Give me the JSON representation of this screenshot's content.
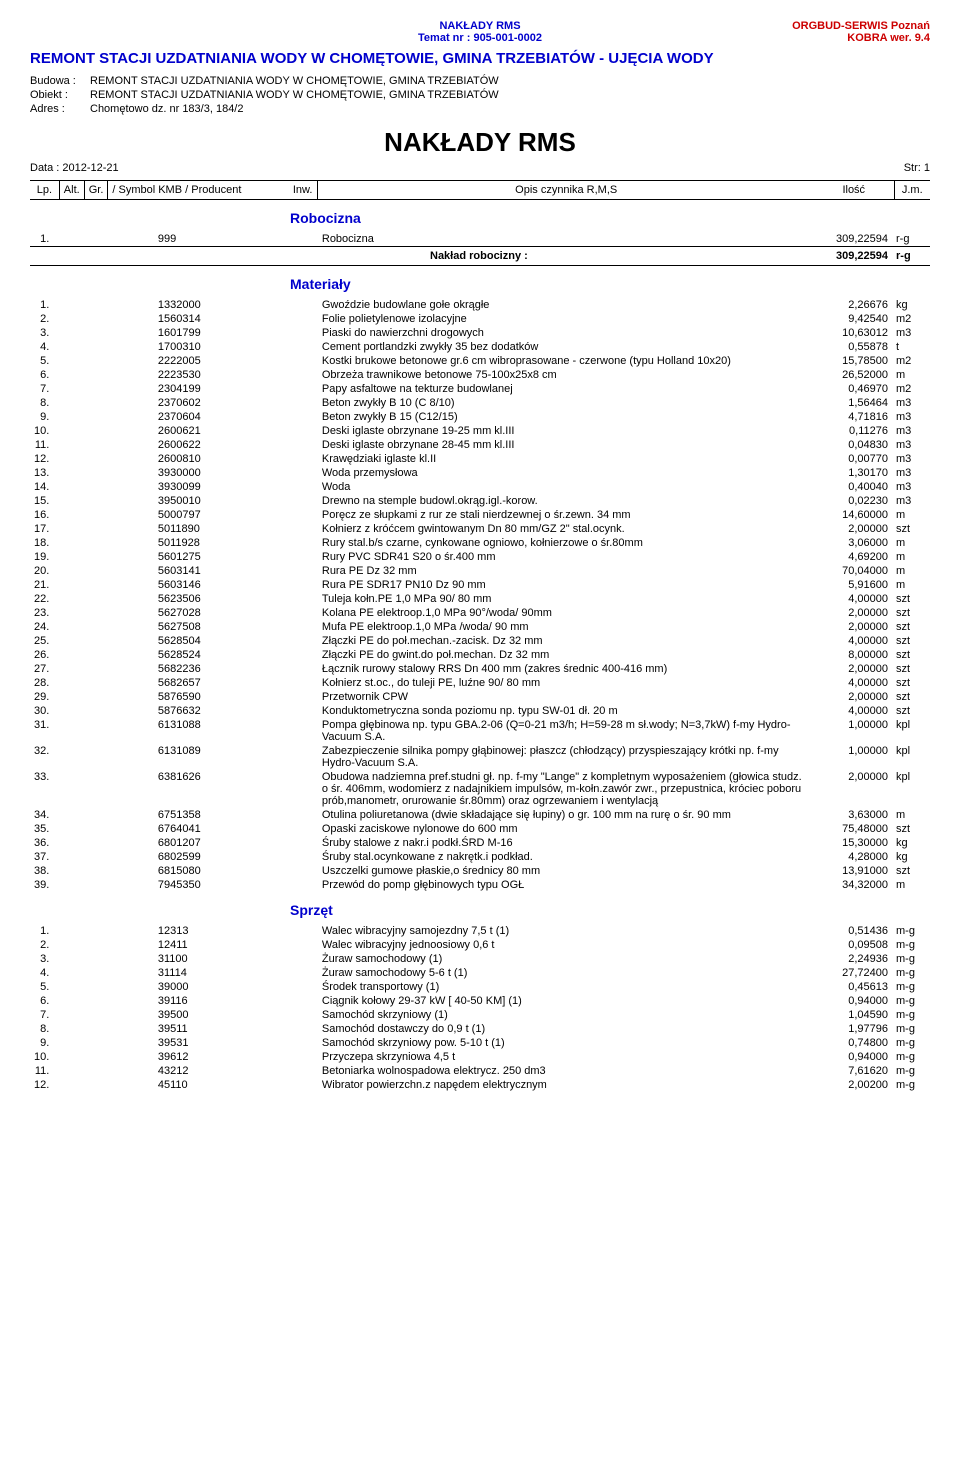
{
  "header": {
    "center_line1": "NAKŁADY RMS",
    "center_line2": "Temat nr : 905-001-0002",
    "right_line1": "ORGBUD-SERWIS Poznań",
    "right_line2": "KOBRA wer. 9.4",
    "title": "REMONT STACJI UZDATNIANIA WODY W CHOMĘTOWIE, GMINA TRZEBIATÓW - UJĘCIA WODY",
    "budowa_label": "Budowa :",
    "budowa_value": "REMONT STACJI UZDATNIANIA WODY W CHOMĘTOWIE, GMINA TRZEBIATÓW",
    "obiekt_label": "Obiekt :",
    "obiekt_value": "REMONT STACJI UZDATNIANIA WODY W CHOMĘTOWIE, GMINA TRZEBIATÓW",
    "adres_label": "Adres :",
    "adres_value": "Chomętowo dz. nr 183/3, 184/2",
    "big_title": "NAKŁADY  RMS",
    "data_label": "Data : 2012-12-21",
    "str_label": "Str: 1"
  },
  "columns": {
    "lp": "Lp.",
    "alt": "Alt.",
    "gr": "Gr.",
    "symbol": "/ Symbol KMB / Producent",
    "inw": "Inw.",
    "opis": "Opis czynnika R,M,S",
    "ilosc": "Ilość",
    "jm": "J.m."
  },
  "sections": {
    "robocizna": {
      "title": "Robocizna",
      "rows": [
        {
          "lp": "1.",
          "sym": "999",
          "opis": "Robocizna",
          "ilosc": "309,22594",
          "jm": "r-g"
        }
      ],
      "summary_label": "Nakład robocizny :",
      "summary_value": "309,22594",
      "summary_jm": "r-g"
    },
    "materialy": {
      "title": "Materiały",
      "rows": [
        {
          "lp": "1.",
          "sym": "1332000",
          "opis": "Gwoździe budowlane gołe okrągłe",
          "ilosc": "2,26676",
          "jm": "kg"
        },
        {
          "lp": "2.",
          "sym": "1560314",
          "opis": "Folie polietylenowe izolacyjne",
          "ilosc": "9,42540",
          "jm": "m2"
        },
        {
          "lp": "3.",
          "sym": "1601799",
          "opis": "Piaski do nawierzchni drogowych",
          "ilosc": "10,63012",
          "jm": "m3"
        },
        {
          "lp": "4.",
          "sym": "1700310",
          "opis": "Cement portlandzki zwykły 35 bez dodatków",
          "ilosc": "0,55878",
          "jm": "t"
        },
        {
          "lp": "5.",
          "sym": "2222005",
          "opis": "Kostki brukowe betonowe gr.6 cm wibroprasowane - czerwone (typu Holland 10x20)",
          "ilosc": "15,78500",
          "jm": "m2"
        },
        {
          "lp": "6.",
          "sym": "2223530",
          "opis": "Obrzeża trawnikowe betonowe 75-100x25x8 cm",
          "ilosc": "26,52000",
          "jm": "m"
        },
        {
          "lp": "7.",
          "sym": "2304199",
          "opis": "Papy asfaltowe na tekturze budowlanej",
          "ilosc": "0,46970",
          "jm": "m2"
        },
        {
          "lp": "8.",
          "sym": "2370602",
          "opis": "Beton zwykły B 10 (C 8/10)",
          "ilosc": "1,56464",
          "jm": "m3"
        },
        {
          "lp": "9.",
          "sym": "2370604",
          "opis": "Beton zwykły B 15 (C12/15)",
          "ilosc": "4,71816",
          "jm": "m3"
        },
        {
          "lp": "10.",
          "sym": "2600621",
          "opis": "Deski iglaste obrzynane 19-25 mm kl.III",
          "ilosc": "0,11276",
          "jm": "m3"
        },
        {
          "lp": "11.",
          "sym": "2600622",
          "opis": "Deski iglaste obrzynane 28-45 mm kl.III",
          "ilosc": "0,04830",
          "jm": "m3"
        },
        {
          "lp": "12.",
          "sym": "2600810",
          "opis": "Krawędziaki iglaste kl.II",
          "ilosc": "0,00770",
          "jm": "m3"
        },
        {
          "lp": "13.",
          "sym": "3930000",
          "opis": "Woda przemysłowa",
          "ilosc": "1,30170",
          "jm": "m3"
        },
        {
          "lp": "14.",
          "sym": "3930099",
          "opis": "Woda",
          "ilosc": "0,40040",
          "jm": "m3"
        },
        {
          "lp": "15.",
          "sym": "3950010",
          "opis": "Drewno na stemple budowl.okrąg.igl.-korow.",
          "ilosc": "0,02230",
          "jm": "m3"
        },
        {
          "lp": "16.",
          "sym": "5000797",
          "opis": "Poręcz ze słupkami z rur ze stali nierdzewnej o śr.zewn. 34 mm",
          "ilosc": "14,60000",
          "jm": "m"
        },
        {
          "lp": "17.",
          "sym": "5011890",
          "opis": "Kołnierz z króćcem gwintowanym Dn 80 mm/GZ 2\" stal.ocynk.",
          "ilosc": "2,00000",
          "jm": "szt"
        },
        {
          "lp": "18.",
          "sym": "5011928",
          "opis": "Rury stal.b/s czarne, cynkowane ogniowo, kołnierzowe o śr.80mm",
          "ilosc": "3,06000",
          "jm": "m"
        },
        {
          "lp": "19.",
          "sym": "5601275",
          "opis": "Rury PVC SDR41 S20 o śr.400 mm",
          "ilosc": "4,69200",
          "jm": "m"
        },
        {
          "lp": "20.",
          "sym": "5603141",
          "opis": "Rura PE Dz 32 mm",
          "ilosc": "70,04000",
          "jm": "m"
        },
        {
          "lp": "21.",
          "sym": "5603146",
          "opis": "Rura PE SDR17 PN10 Dz 90 mm",
          "ilosc": "5,91600",
          "jm": "m"
        },
        {
          "lp": "22.",
          "sym": "5623506",
          "opis": "Tuleja kołn.PE 1,0  MPa  90/ 80 mm",
          "ilosc": "4,00000",
          "jm": "szt"
        },
        {
          "lp": "23.",
          "sym": "5627028",
          "opis": "Kolana PE elektroop.1,0 MPa 90°/woda/ 90mm",
          "ilosc": "2,00000",
          "jm": "szt"
        },
        {
          "lp": "24.",
          "sym": "5627508",
          "opis": "Mufa PE elektroop.1,0 MPa /woda/  90 mm",
          "ilosc": "2,00000",
          "jm": "szt"
        },
        {
          "lp": "25.",
          "sym": "5628504",
          "opis": "Złączki PE do poł.mechan.-zacisk. Dz 32 mm",
          "ilosc": "4,00000",
          "jm": "szt"
        },
        {
          "lp": "26.",
          "sym": "5628524",
          "opis": "Złączki PE do gwint.do poł.mechan. Dz 32 mm",
          "ilosc": "8,00000",
          "jm": "szt"
        },
        {
          "lp": "27.",
          "sym": "5682236",
          "opis": "Łącznik rurowy stalowy RRS Dn 400 mm (zakres średnic 400-416 mm)",
          "ilosc": "2,00000",
          "jm": "szt"
        },
        {
          "lp": "28.",
          "sym": "5682657",
          "opis": "Kołnierz st.oc., do tuleji PE, luźne 90/ 80 mm",
          "ilosc": "4,00000",
          "jm": "szt"
        },
        {
          "lp": "29.",
          "sym": "5876590",
          "opis": "Przetwornik CPW",
          "ilosc": "2,00000",
          "jm": "szt"
        },
        {
          "lp": "30.",
          "sym": "5876632",
          "opis": "Konduktometryczna sonda poziomu np. typu SW-01 dł. 20 m",
          "ilosc": "4,00000",
          "jm": "szt"
        },
        {
          "lp": "31.",
          "sym": "6131088",
          "opis": "Pompa głębinowa np. typu GBA.2-06 (Q=0-21 m3/h; H=59-28 m sł.wody; N=3,7kW) f-my Hydro-Vacuum S.A.",
          "ilosc": "1,00000",
          "jm": "kpl"
        },
        {
          "lp": "32.",
          "sym": "6131089",
          "opis": "Zabezpieczenie silnika pompy głąbinowej: płaszcz (chłodzący) przyspieszający krótki np. f-my Hydro-Vacuum S.A.",
          "ilosc": "1,00000",
          "jm": "kpl"
        },
        {
          "lp": "33.",
          "sym": "6381626",
          "opis": "Obudowa nadziemna pref.studni gł. np. f-my \"Lange\" z kompletnym wyposażeniem (głowica studz. o śr. 406mm, wodomierz z nadajnikiem impulsów, m-kołn.zawór zwr., przepustnica, króciec poboru prób,manometr, orurowanie śr.80mm) oraz ogrzewaniem i wentylacją",
          "ilosc": "2,00000",
          "jm": "kpl"
        },
        {
          "lp": "34.",
          "sym": "6751358",
          "opis": "Otulina poliuretanowa (dwie składające się łupiny) o gr. 100 mm na rurę o śr. 90 mm",
          "ilosc": "3,63000",
          "jm": "m"
        },
        {
          "lp": "35.",
          "sym": "6764041",
          "opis": "Opaski zaciskowe nylonowe do 600 mm",
          "ilosc": "75,48000",
          "jm": "szt"
        },
        {
          "lp": "36.",
          "sym": "6801207",
          "opis": "Śruby stalowe z nakr.i podkł.ŚRD M-16",
          "ilosc": "15,30000",
          "jm": "kg"
        },
        {
          "lp": "37.",
          "sym": "6802599",
          "opis": "Śruby stal.ocynkowane z nakrętk.i podkład.",
          "ilosc": "4,28000",
          "jm": "kg"
        },
        {
          "lp": "38.",
          "sym": "6815080",
          "opis": "Uszczelki gumowe płaskie,o średnicy  80 mm",
          "ilosc": "13,91000",
          "jm": "szt"
        },
        {
          "lp": "39.",
          "sym": "7945350",
          "opis": "Przewód do pomp głębinowych typu OGŁ",
          "ilosc": "34,32000",
          "jm": "m"
        }
      ]
    },
    "sprzet": {
      "title": "Sprzęt",
      "rows": [
        {
          "lp": "1.",
          "sym": "12313",
          "opis": "Walec wibracyjny samojezdny 7,5 t (1)",
          "ilosc": "0,51436",
          "jm": "m-g"
        },
        {
          "lp": "2.",
          "sym": "12411",
          "opis": "Walec wibracyjny jednoosiowy 0,6 t",
          "ilosc": "0,09508",
          "jm": "m-g"
        },
        {
          "lp": "3.",
          "sym": "31100",
          "opis": "Żuraw samochodowy (1)",
          "ilosc": "2,24936",
          "jm": "m-g"
        },
        {
          "lp": "4.",
          "sym": "31114",
          "opis": "Żuraw samochodowy    5-6 t  (1)",
          "ilosc": "27,72400",
          "jm": "m-g"
        },
        {
          "lp": "5.",
          "sym": "39000",
          "opis": "Środek transportowy (1)",
          "ilosc": "0,45613",
          "jm": "m-g"
        },
        {
          "lp": "6.",
          "sym": "39116",
          "opis": "Ciągnik kołowy 29-37 kW [ 40-50 KM] (1)",
          "ilosc": "0,94000",
          "jm": "m-g"
        },
        {
          "lp": "7.",
          "sym": "39500",
          "opis": "Samochód skrzyniowy (1)",
          "ilosc": "1,04590",
          "jm": "m-g"
        },
        {
          "lp": "8.",
          "sym": "39511",
          "opis": "Samochód dostawczy do 0,9 t  (1)",
          "ilosc": "1,97796",
          "jm": "m-g"
        },
        {
          "lp": "9.",
          "sym": "39531",
          "opis": "Samochód skrzyniowy pow.  5-10 t  (1)",
          "ilosc": "0,74800",
          "jm": "m-g"
        },
        {
          "lp": "10.",
          "sym": "39612",
          "opis": "Przyczepa skrzyniowa 4,5 t",
          "ilosc": "0,94000",
          "jm": "m-g"
        },
        {
          "lp": "11.",
          "sym": "43212",
          "opis": "Betoniarka wolnospadowa elektrycz. 250 dm3",
          "ilosc": "7,61620",
          "jm": "m-g"
        },
        {
          "lp": "12.",
          "sym": "45110",
          "opis": "Wibrator powierzchn.z napędem elektrycznym",
          "ilosc": "2,00200",
          "jm": "m-g"
        }
      ]
    }
  },
  "colors": {
    "blue": "#0000cc",
    "red": "#cc0000",
    "text": "#000000",
    "bg": "#ffffff"
  }
}
